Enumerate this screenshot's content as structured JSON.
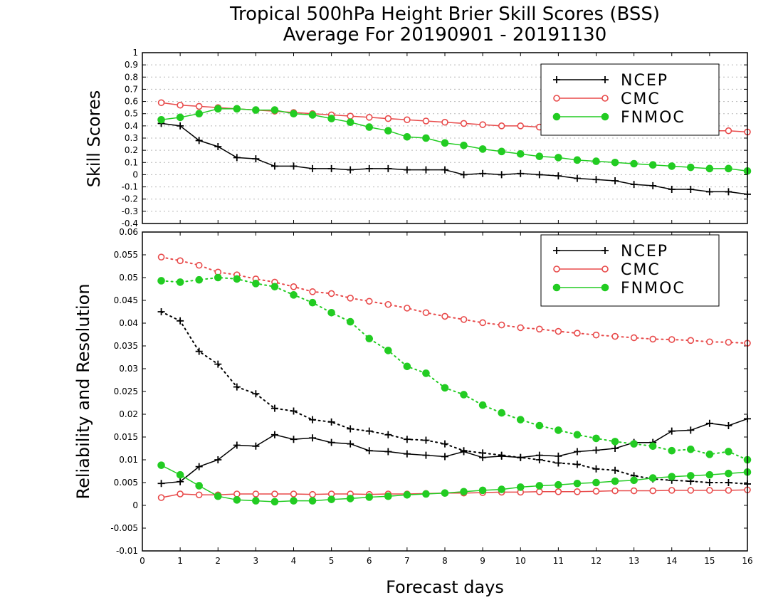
{
  "title_line1": "Tropical 500hPa Height Brier Skill Scores (BSS)",
  "title_line2": "Average For 20190901 - 20191130",
  "xlabel": "Forecast days",
  "colors": {
    "NCEP": "#000000",
    "CMC": "#e84a4a",
    "FNMOC": "#22cc22"
  },
  "chart_data": [
    {
      "type": "line",
      "panel": "top",
      "ylabel": "Skill Scores",
      "xlim": [
        0,
        16
      ],
      "ylim": [
        -0.4,
        1
      ],
      "x_ticks": [
        "0",
        "1",
        "2",
        "3",
        "4",
        "5",
        "6",
        "7",
        "8",
        "9",
        "10",
        "11",
        "12",
        "13",
        "14",
        "15",
        "16"
      ],
      "y_ticks": [
        "-0.4",
        "-0.3",
        "-0.2",
        "-0.1",
        "0",
        "0.1",
        "0.2",
        "0.3",
        "0.4",
        "0.5",
        "0.6",
        "0.7",
        "0.8",
        "0.9",
        "1"
      ],
      "grid": true,
      "legend_position": "top-right",
      "legend": [
        "NCEP",
        "CMC",
        "FNMOC"
      ],
      "x": [
        0.5,
        1,
        1.5,
        2,
        2.5,
        3,
        3.5,
        4,
        4.5,
        5,
        5.5,
        6,
        6.5,
        7,
        7.5,
        8,
        8.5,
        9,
        9.5,
        10,
        10.5,
        11,
        11.5,
        12,
        12.5,
        13,
        13.5,
        14,
        14.5,
        15,
        15.5,
        16
      ],
      "series": [
        {
          "name": "NCEP",
          "style": "solid",
          "marker": "plus",
          "values": [
            0.42,
            0.4,
            0.28,
            0.23,
            0.14,
            0.13,
            0.07,
            0.07,
            0.05,
            0.05,
            0.04,
            0.05,
            0.05,
            0.04,
            0.04,
            0.04,
            0.0,
            0.01,
            0.0,
            0.01,
            0.0,
            -0.01,
            -0.03,
            -0.04,
            -0.05,
            -0.08,
            -0.09,
            -0.12,
            -0.12,
            -0.14,
            -0.14,
            -0.16
          ]
        },
        {
          "name": "CMC",
          "style": "solid",
          "marker": "open-circle",
          "values": [
            0.59,
            0.57,
            0.56,
            0.55,
            0.54,
            0.53,
            0.52,
            0.51,
            0.5,
            0.49,
            0.48,
            0.47,
            0.46,
            0.45,
            0.44,
            0.43,
            0.42,
            0.41,
            0.4,
            0.4,
            0.39,
            0.39,
            0.38,
            0.38,
            0.37,
            0.37,
            0.37,
            0.37,
            0.36,
            0.36,
            0.36,
            0.35
          ]
        },
        {
          "name": "FNMOC",
          "style": "solid",
          "marker": "filled-circle",
          "values": [
            0.45,
            0.47,
            0.5,
            0.54,
            0.54,
            0.53,
            0.53,
            0.5,
            0.49,
            0.46,
            0.43,
            0.39,
            0.36,
            0.31,
            0.3,
            0.26,
            0.24,
            0.21,
            0.19,
            0.17,
            0.15,
            0.14,
            0.12,
            0.11,
            0.1,
            0.09,
            0.08,
            0.07,
            0.06,
            0.05,
            0.05,
            0.03
          ]
        }
      ]
    },
    {
      "type": "line",
      "panel": "bottom",
      "ylabel": "Reliability and Resolution",
      "xlim": [
        0,
        16
      ],
      "ylim": [
        -0.01,
        0.06
      ],
      "x_ticks": [
        "0",
        "1",
        "2",
        "3",
        "4",
        "5",
        "6",
        "7",
        "8",
        "9",
        "10",
        "11",
        "12",
        "13",
        "14",
        "15",
        "16"
      ],
      "y_ticks": [
        "-0.01",
        "-0.005",
        "0",
        "0.005",
        "0.01",
        "0.015",
        "0.02",
        "0.025",
        "0.03",
        "0.035",
        "0.04",
        "0.045",
        "0.05",
        "0.055",
        "0.06"
      ],
      "grid": false,
      "legend_position": "top-right",
      "legend": [
        "NCEP",
        "CMC",
        "FNMOC"
      ],
      "x": [
        0.5,
        1,
        1.5,
        2,
        2.5,
        3,
        3.5,
        4,
        4.5,
        5,
        5.5,
        6,
        6.5,
        7,
        7.5,
        8,
        8.5,
        9,
        9.5,
        10,
        10.5,
        11,
        11.5,
        12,
        12.5,
        13,
        13.5,
        14,
        14.5,
        15,
        15.5,
        16
      ],
      "series": [
        {
          "name": "NCEP",
          "metric": "reliability",
          "style": "solid",
          "marker": "plus",
          "values": [
            0.0048,
            0.0052,
            0.0085,
            0.01,
            0.0132,
            0.013,
            0.0155,
            0.0145,
            0.0148,
            0.0138,
            0.0135,
            0.012,
            0.0118,
            0.0113,
            0.011,
            0.0107,
            0.0118,
            0.0105,
            0.0108,
            0.0105,
            0.011,
            0.0108,
            0.0118,
            0.0121,
            0.0125,
            0.0138,
            0.0138,
            0.0163,
            0.0165,
            0.018,
            0.0175,
            0.019
          ]
        },
        {
          "name": "NCEP",
          "metric": "resolution",
          "style": "dotted",
          "marker": "plus",
          "values": [
            0.0425,
            0.0405,
            0.0338,
            0.031,
            0.026,
            0.0245,
            0.0213,
            0.0207,
            0.0188,
            0.0183,
            0.0168,
            0.0163,
            0.0155,
            0.0145,
            0.0143,
            0.0135,
            0.012,
            0.0115,
            0.011,
            0.0105,
            0.01,
            0.0093,
            0.009,
            0.008,
            0.0077,
            0.0065,
            0.0058,
            0.0055,
            0.0053,
            0.005,
            0.005,
            0.0047
          ]
        },
        {
          "name": "CMC",
          "metric": "reliability",
          "style": "solid",
          "marker": "open-circle",
          "values": [
            0.0017,
            0.0025,
            0.0023,
            0.0023,
            0.0025,
            0.0025,
            0.0025,
            0.0025,
            0.0024,
            0.0025,
            0.0025,
            0.0024,
            0.0025,
            0.0025,
            0.0026,
            0.0027,
            0.0027,
            0.0028,
            0.0029,
            0.0029,
            0.003,
            0.003,
            0.003,
            0.0031,
            0.0032,
            0.0032,
            0.0032,
            0.0033,
            0.0033,
            0.0033,
            0.0033,
            0.0034
          ]
        },
        {
          "name": "CMC",
          "metric": "resolution",
          "style": "dotted",
          "marker": "open-circle",
          "values": [
            0.0545,
            0.0537,
            0.0527,
            0.0512,
            0.0506,
            0.0497,
            0.049,
            0.048,
            0.0469,
            0.0465,
            0.0455,
            0.0448,
            0.0441,
            0.0433,
            0.0423,
            0.0415,
            0.0408,
            0.0401,
            0.0396,
            0.039,
            0.0387,
            0.0382,
            0.0378,
            0.0374,
            0.0371,
            0.0368,
            0.0365,
            0.0364,
            0.0362,
            0.0359,
            0.0358,
            0.0356
          ]
        },
        {
          "name": "FNMOC",
          "metric": "reliability",
          "style": "solid",
          "marker": "filled-circle",
          "values": [
            0.0088,
            0.0067,
            0.0043,
            0.002,
            0.0012,
            0.001,
            0.0008,
            0.001,
            0.001,
            0.0013,
            0.0015,
            0.0018,
            0.002,
            0.0023,
            0.0025,
            0.0027,
            0.003,
            0.0033,
            0.0035,
            0.004,
            0.0043,
            0.0045,
            0.0048,
            0.005,
            0.0053,
            0.0055,
            0.006,
            0.0063,
            0.0065,
            0.0067,
            0.007,
            0.0073
          ]
        },
        {
          "name": "FNMOC",
          "metric": "resolution",
          "style": "dotted",
          "marker": "filled-circle",
          "values": [
            0.0493,
            0.049,
            0.0495,
            0.05,
            0.0497,
            0.0487,
            0.048,
            0.0462,
            0.0445,
            0.0423,
            0.0403,
            0.0366,
            0.034,
            0.0305,
            0.029,
            0.0258,
            0.0243,
            0.022,
            0.0203,
            0.0188,
            0.0175,
            0.0165,
            0.0155,
            0.0147,
            0.014,
            0.0135,
            0.013,
            0.012,
            0.0123,
            0.0112,
            0.0118,
            0.01
          ]
        }
      ]
    }
  ]
}
